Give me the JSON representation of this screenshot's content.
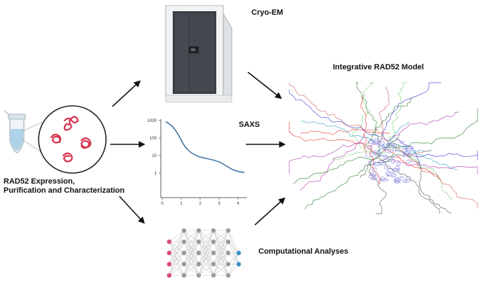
{
  "labels": {
    "cryo_em": "Cryo-EM",
    "saxs": "SAXS",
    "computational": "Computational Analyses",
    "model": "Integrative RAD52 Model",
    "expression_line1": "RAD52 Expression,",
    "expression_line2": "Purification and Characterization"
  },
  "saxs_plot": {
    "y_ticks": [
      "1000",
      "100",
      "10",
      "1"
    ],
    "x_ticks": [
      "0",
      "1",
      "2",
      "3",
      "4"
    ]
  },
  "colors": {
    "protein_red": "#d4304a",
    "curve_blue": "#3f6f9f",
    "node_pink": "#d94a78",
    "node_gray": "#9a9a9a",
    "node_blue": "#3b8fc7",
    "arrow": "#111111",
    "microscope_dark": "#3a3f44"
  },
  "icons": [
    "arrow-icon",
    "microscope-icon",
    "tube-icon",
    "protein-blob-icon",
    "neural-network-icon",
    "protein-ensemble-icon"
  ]
}
